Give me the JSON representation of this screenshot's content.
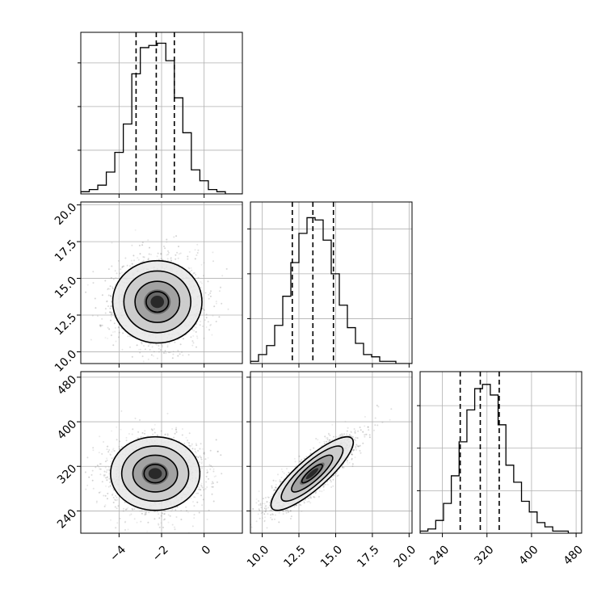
{
  "chart_data": {
    "type": "corner",
    "grid": true,
    "parameters": [
      {
        "range": [
          -5.8,
          1.8
        ],
        "ticks": [
          -4,
          -2,
          0
        ],
        "tick_labels": [
          "−4",
          "−2",
          "0"
        ]
      },
      {
        "range": [
          9.2,
          20.2
        ],
        "ticks": [
          10.0,
          12.5,
          15.0,
          17.5,
          20.0
        ],
        "tick_labels": [
          "10.0",
          "12.5",
          "15.0",
          "17.5",
          "20.0"
        ]
      },
      {
        "range": [
          200,
          490
        ],
        "ticks": [
          240,
          320,
          400,
          480
        ],
        "tick_labels": [
          "240",
          "320",
          "400",
          "480"
        ]
      }
    ],
    "histograms": [
      {
        "param": 0,
        "bin_edges": [
          -5.8,
          -5.4,
          -5.0,
          -4.6,
          -4.2,
          -3.8,
          -3.4,
          -3.0,
          -2.6,
          -2.2,
          -1.8,
          -1.4,
          -1.0,
          -0.6,
          -0.2,
          0.2,
          0.6,
          1.0,
          1.4,
          1.8
        ],
        "counts": [
          1,
          2,
          4,
          10,
          19,
          32,
          55,
          67,
          68,
          69,
          61,
          44,
          28,
          11,
          6,
          2,
          1,
          0,
          0
        ],
        "y_max": 74,
        "quantiles": [
          -3.2,
          -2.25,
          -1.4
        ]
      },
      {
        "param": 1,
        "bin_edges": [
          9.2,
          9.75,
          10.3,
          10.85,
          11.4,
          11.95,
          12.5,
          13.05,
          13.6,
          14.15,
          14.7,
          15.25,
          15.8,
          16.35,
          16.9,
          17.45,
          18.0,
          18.55,
          19.1,
          19.65,
          20.2
        ],
        "counts": [
          1,
          4,
          8,
          17,
          30,
          45,
          58,
          65,
          64,
          55,
          40,
          26,
          16,
          9,
          4,
          3,
          1,
          1,
          0,
          0
        ],
        "y_max": 72,
        "quantiles": [
          12.05,
          13.45,
          14.85
        ]
      },
      {
        "param": 2,
        "bin_edges": [
          200,
          214,
          228,
          242,
          256,
          270,
          284,
          298,
          312,
          326,
          340,
          354,
          368,
          382,
          396,
          410,
          424,
          438,
          452,
          466,
          480,
          490
        ],
        "counts": [
          1,
          2,
          6,
          14,
          27,
          43,
          58,
          68,
          70,
          65,
          51,
          32,
          24,
          15,
          10,
          5,
          3,
          1,
          1,
          0,
          0
        ],
        "y_max": 76,
        "quantiles": [
          272,
          308,
          342
        ]
      }
    ],
    "density_panels": [
      {
        "x_param": 0,
        "y_param": 1,
        "mean": [
          -2.2,
          13.4
        ],
        "sd": [
          1.05,
          1.4
        ],
        "corr": 0.0,
        "levels_sigma": [
          0.5,
          1.0,
          1.5,
          2.0
        ]
      },
      {
        "x_param": 0,
        "y_param": 2,
        "mean": [
          -2.3,
          307
        ],
        "sd": [
          1.05,
          33
        ],
        "corr": 0.0,
        "levels_sigma": [
          0.5,
          1.0,
          1.5,
          2.0
        ]
      },
      {
        "x_param": 1,
        "y_param": 2,
        "mean": [
          13.4,
          307
        ],
        "sd": [
          1.4,
          33
        ],
        "corr": 0.85,
        "levels_sigma": [
          0.5,
          1.0,
          1.5,
          2.0
        ]
      }
    ],
    "colors": {
      "line": "#000000",
      "grid": "#b0b0b0",
      "samples": "#808080"
    }
  }
}
